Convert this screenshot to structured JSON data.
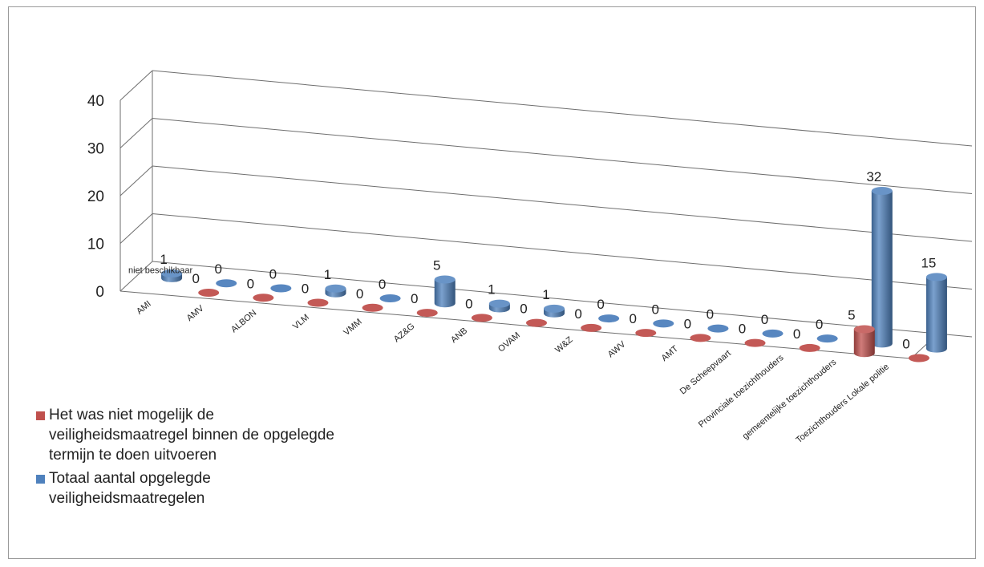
{
  "chart_data": {
    "type": "bar",
    "categories": [
      "AMI",
      "AMV",
      "ALBON",
      "VLM",
      "VMM",
      "AZ&G",
      "ANB",
      "OVAM",
      "W&Z",
      "AWV",
      "AMT",
      "De Scheepvaart",
      "Provinciale toezichthouders",
      "gemeentelijke toezichthouders",
      "Toezichthouders Lokale politie"
    ],
    "series": [
      {
        "name": "Het was niet mogelijk de veiligheidsmaatregel binnen de opgelegde termijn te doen uitvoeren",
        "color": "#c0504d",
        "values": [
          null,
          0,
          0,
          0,
          0,
          0,
          0,
          0,
          0,
          0,
          0,
          0,
          0,
          5,
          0
        ],
        "labels": [
          "niet beschikbaar",
          "0",
          "0",
          "0",
          "0",
          "0",
          "0",
          "0",
          "0",
          "0",
          "0",
          "0",
          "0",
          "5",
          "0"
        ]
      },
      {
        "name": "Totaal aantal opgelegde veiligheidsmaatregelen",
        "color": "#4f81bd",
        "values": [
          1,
          0,
          0,
          1,
          0,
          5,
          1,
          1,
          0,
          0,
          0,
          0,
          0,
          32,
          15
        ],
        "labels": [
          "1",
          "0",
          "0",
          "1",
          "0",
          "5",
          "1",
          "1",
          "0",
          "0",
          "0",
          "0",
          "0",
          "32",
          "15"
        ]
      }
    ],
    "y_ticks": [
      "0",
      "10",
      "20",
      "30",
      "40"
    ],
    "ylim": [
      0,
      40
    ],
    "grid": true,
    "legend_position": "bottom-left",
    "style": "3d-cylinder"
  }
}
